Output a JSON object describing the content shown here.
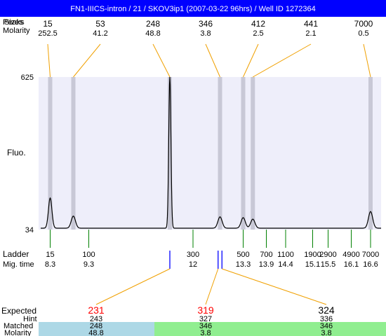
{
  "title": "FN1-IIICS-intron / 21 / SKOV3ip1 (2007-03-22 96hrs) / Well ID 1272364",
  "colors": {
    "header_bg": "#0000ff",
    "header_text": "#ffffff",
    "plot_bg": "#eeeefa",
    "band": "#c8c8d6",
    "connector": "#f0a000",
    "ladder_tick": "#008000",
    "expected_red": "#ff0000",
    "marker_blue": "#0000ff",
    "matched_blue": "#add8e6",
    "matched_green": "#90ee90",
    "trace": "#000000"
  },
  "row_labels": {
    "peaks_overlap": [
      "Peaks",
      "Sizes"
    ],
    "molarity_top": "Molarity",
    "fluo": "Fluo.",
    "ladder": "Ladder",
    "mig_time": "Mig. time",
    "expected": "Expected",
    "hint": "Hint",
    "matched": "Matched",
    "molarity_bottom": "Molarity"
  },
  "chart_data": {
    "type": "line",
    "description_type": "electropherogram",
    "y_ticks": [
      "625",
      "34"
    ],
    "ylim": [
      34,
      625
    ],
    "migration_time_range": [
      8.0,
      17.0
    ],
    "peaks": [
      {
        "size": "15",
        "molarity": "252.5",
        "time": 8.3,
        "height": 0.2
      },
      {
        "size": "53",
        "molarity": "41.2",
        "time": 8.9,
        "height": 0.08
      },
      {
        "size": "248",
        "molarity": "48.8",
        "time": 11.4,
        "height": 1.0
      },
      {
        "size": "346",
        "molarity": "3.8",
        "time": 12.7,
        "height": 0.075
      },
      {
        "size": "412",
        "molarity": "2.5",
        "time": 13.3,
        "height": 0.07
      },
      {
        "size": "441",
        "molarity": "2.1",
        "time": 13.55,
        "height": 0.06
      },
      {
        "size": "7000",
        "molarity": "0.5",
        "time": 16.6,
        "height": 0.11
      }
    ],
    "ladder": [
      {
        "size": "15",
        "time": "8.3",
        "t": 8.3
      },
      {
        "size": "100",
        "time": "9.3",
        "t": 9.3
      },
      {
        "size": "300",
        "time": "12",
        "t": 12.0
      },
      {
        "size": "500",
        "time": "13.3",
        "t": 13.3
      },
      {
        "size": "700",
        "time": "13.9",
        "t": 13.9
      },
      {
        "size": "1100",
        "time": "14.4",
        "t": 14.4
      },
      {
        "size": "1900",
        "time": "15.1",
        "t": 15.1
      },
      {
        "size": "2900",
        "time": "15.5",
        "t": 15.5
      },
      {
        "size": "4900",
        "time": "16.1",
        "t": 16.1
      },
      {
        "size": "7000",
        "time": "16.6",
        "t": 16.6
      }
    ],
    "expected": [
      {
        "size": "231",
        "hint": "243",
        "matched": "248",
        "molarity": "48.8",
        "marker_time": 11.4,
        "color": "red"
      },
      {
        "size": "319",
        "hint": "327",
        "matched": "346",
        "molarity": "3.8",
        "marker_time": 12.65,
        "color": "red"
      },
      {
        "size": "324",
        "hint": "336",
        "matched": "346",
        "molarity": "3.8",
        "marker_time": 12.75,
        "color": "black"
      }
    ]
  }
}
